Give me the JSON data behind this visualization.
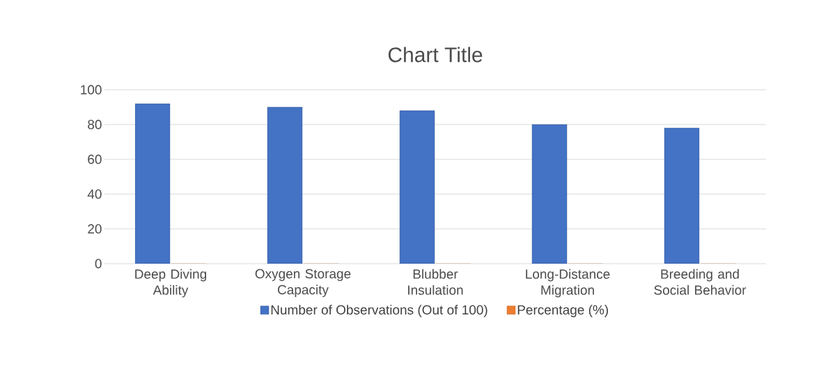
{
  "chart_data": {
    "type": "bar",
    "title": "Chart Title",
    "categories": [
      "Deep Diving Ability",
      "Oxygen Storage Capacity",
      "Blubber Insulation",
      "Long-Distance Migration",
      "Breeding and Social Behavior"
    ],
    "series": [
      {
        "name": "Number of Observations (Out of 100)",
        "color": "#4472c4",
        "values": [
          92,
          90,
          88,
          80,
          78
        ]
      },
      {
        "name": "Percentage (%)",
        "color": "#ed7d31",
        "values": [
          0,
          0,
          0,
          0,
          0
        ]
      }
    ],
    "ylim": [
      0,
      100
    ],
    "yticks": [
      0,
      20,
      40,
      60,
      80,
      100
    ],
    "grid": "y",
    "legend": "bottom"
  }
}
